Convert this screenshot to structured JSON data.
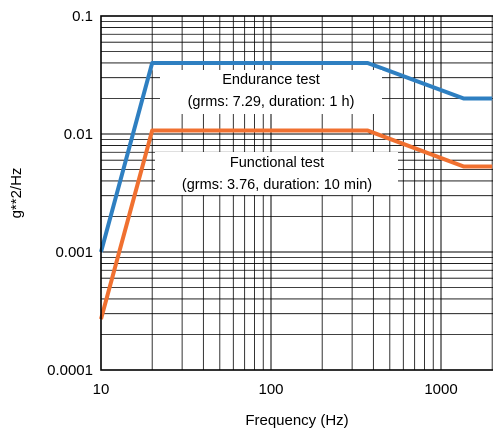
{
  "chart_data": {
    "type": "line",
    "xlabel": "Frequency (Hz)",
    "ylabel": "g**2/Hz",
    "x_scale": "log",
    "y_scale": "log",
    "xlim": [
      10,
      2000
    ],
    "ylim": [
      0.0001,
      0.1
    ],
    "x_ticks": [
      10,
      100,
      1000
    ],
    "x_tick_labels": [
      "10",
      "100",
      "1000"
    ],
    "y_ticks": [
      0.0001,
      0.001,
      0.01,
      0.1
    ],
    "y_tick_labels": [
      "0.0001",
      "0.001",
      "0.01",
      "0.1"
    ],
    "grid": true,
    "series": [
      {
        "color": "#2e7fc1",
        "x": [
          10,
          20,
          370,
          1360,
          2000
        ],
        "y": [
          0.001,
          0.04,
          0.04,
          0.02,
          0.02
        ]
      },
      {
        "color": "#f07030",
        "x": [
          10,
          20,
          370,
          1360,
          2000
        ],
        "y": [
          0.00027,
          0.0107,
          0.0107,
          0.0053,
          0.0053
        ]
      }
    ],
    "annotations": [
      {
        "lines": [
          "Endurance test",
          "(grms: 7.29, duration: 1 h)"
        ]
      },
      {
        "lines": [
          "Functional test",
          "(grms: 3.76, duration: 10 min)"
        ]
      }
    ]
  }
}
